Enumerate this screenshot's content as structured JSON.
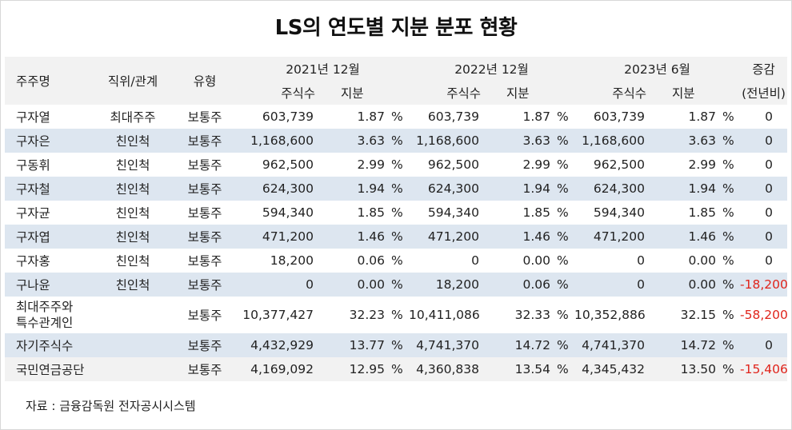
{
  "title": "LS의 연도별 지분 분포 현황",
  "header": {
    "shareholder": "주주명",
    "position": "직위/관계",
    "type": "유형",
    "period1": "2021년 12월",
    "period2": "2022년 12월",
    "period3": "2023년 6월",
    "change_line1": "증감",
    "change_line2": "(전년비)",
    "shares": "주식수",
    "stake": "지분"
  },
  "pct_unit": "%",
  "rows": [
    {
      "name": "구자열",
      "relation": "최대주주",
      "type": "보통주",
      "s1": "603,739",
      "p1": "1.87",
      "s2": "603,739",
      "p2": "1.87",
      "s3": "603,739",
      "p3": "1.87",
      "change": "0"
    },
    {
      "name": "구자은",
      "relation": "친인척",
      "type": "보통주",
      "s1": "1,168,600",
      "p1": "3.63",
      "s2": "1,168,600",
      "p2": "3.63",
      "s3": "1,168,600",
      "p3": "3.63",
      "change": "0"
    },
    {
      "name": "구동휘",
      "relation": "친인척",
      "type": "보통주",
      "s1": "962,500",
      "p1": "2.99",
      "s2": "962,500",
      "p2": "2.99",
      "s3": "962,500",
      "p3": "2.99",
      "change": "0"
    },
    {
      "name": "구자철",
      "relation": "친인척",
      "type": "보통주",
      "s1": "624,300",
      "p1": "1.94",
      "s2": "624,300",
      "p2": "1.94",
      "s3": "624,300",
      "p3": "1.94",
      "change": "0"
    },
    {
      "name": "구자균",
      "relation": "친인척",
      "type": "보통주",
      "s1": "594,340",
      "p1": "1.85",
      "s2": "594,340",
      "p2": "1.85",
      "s3": "594,340",
      "p3": "1.85",
      "change": "0"
    },
    {
      "name": "구자엽",
      "relation": "친인척",
      "type": "보통주",
      "s1": "471,200",
      "p1": "1.46",
      "s2": "471,200",
      "p2": "1.46",
      "s3": "471,200",
      "p3": "1.46",
      "change": "0"
    },
    {
      "name": "구자홍",
      "relation": "친인척",
      "type": "보통주",
      "s1": "18,200",
      "p1": "0.06",
      "s2": "0",
      "p2": "0.00",
      "s3": "0",
      "p3": "0.00",
      "change": "0"
    },
    {
      "name": "구나윤",
      "relation": "친인척",
      "type": "보통주",
      "s1": "0",
      "p1": "0.00",
      "s2": "18,200",
      "p2": "0.06",
      "s3": "0",
      "p3": "0.00",
      "change": "-18,200"
    }
  ],
  "total": {
    "name_line1": "최대주주와",
    "name_line2": "특수관계인",
    "type": "보통주",
    "s1": "10,377,427",
    "p1": "32.23",
    "s2": "10,411,086",
    "p2": "32.33",
    "s3": "10,352,886",
    "p3": "32.15",
    "change": "-58,200"
  },
  "treasury": {
    "name": "자기주식수",
    "type": "보통주",
    "s1": "4,432,929",
    "p1": "13.77",
    "s2": "4,741,370",
    "p2": "14.72",
    "s3": "4,741,370",
    "p3": "14.72",
    "change": "0"
  },
  "nps": {
    "name": "국민연금공단",
    "type": "보통주",
    "s1": "4,169,092",
    "p1": "12.95",
    "s2": "4,360,838",
    "p2": "13.54",
    "s3": "4,345,432",
    "p3": "13.50",
    "change": "-15,406"
  },
  "source": "자료 : 금융감독원 전자공시시스템",
  "colors": {
    "header_bg": "#f2f2f2",
    "stripe_bg": "#dde6f0",
    "negative": "#e0241b"
  }
}
